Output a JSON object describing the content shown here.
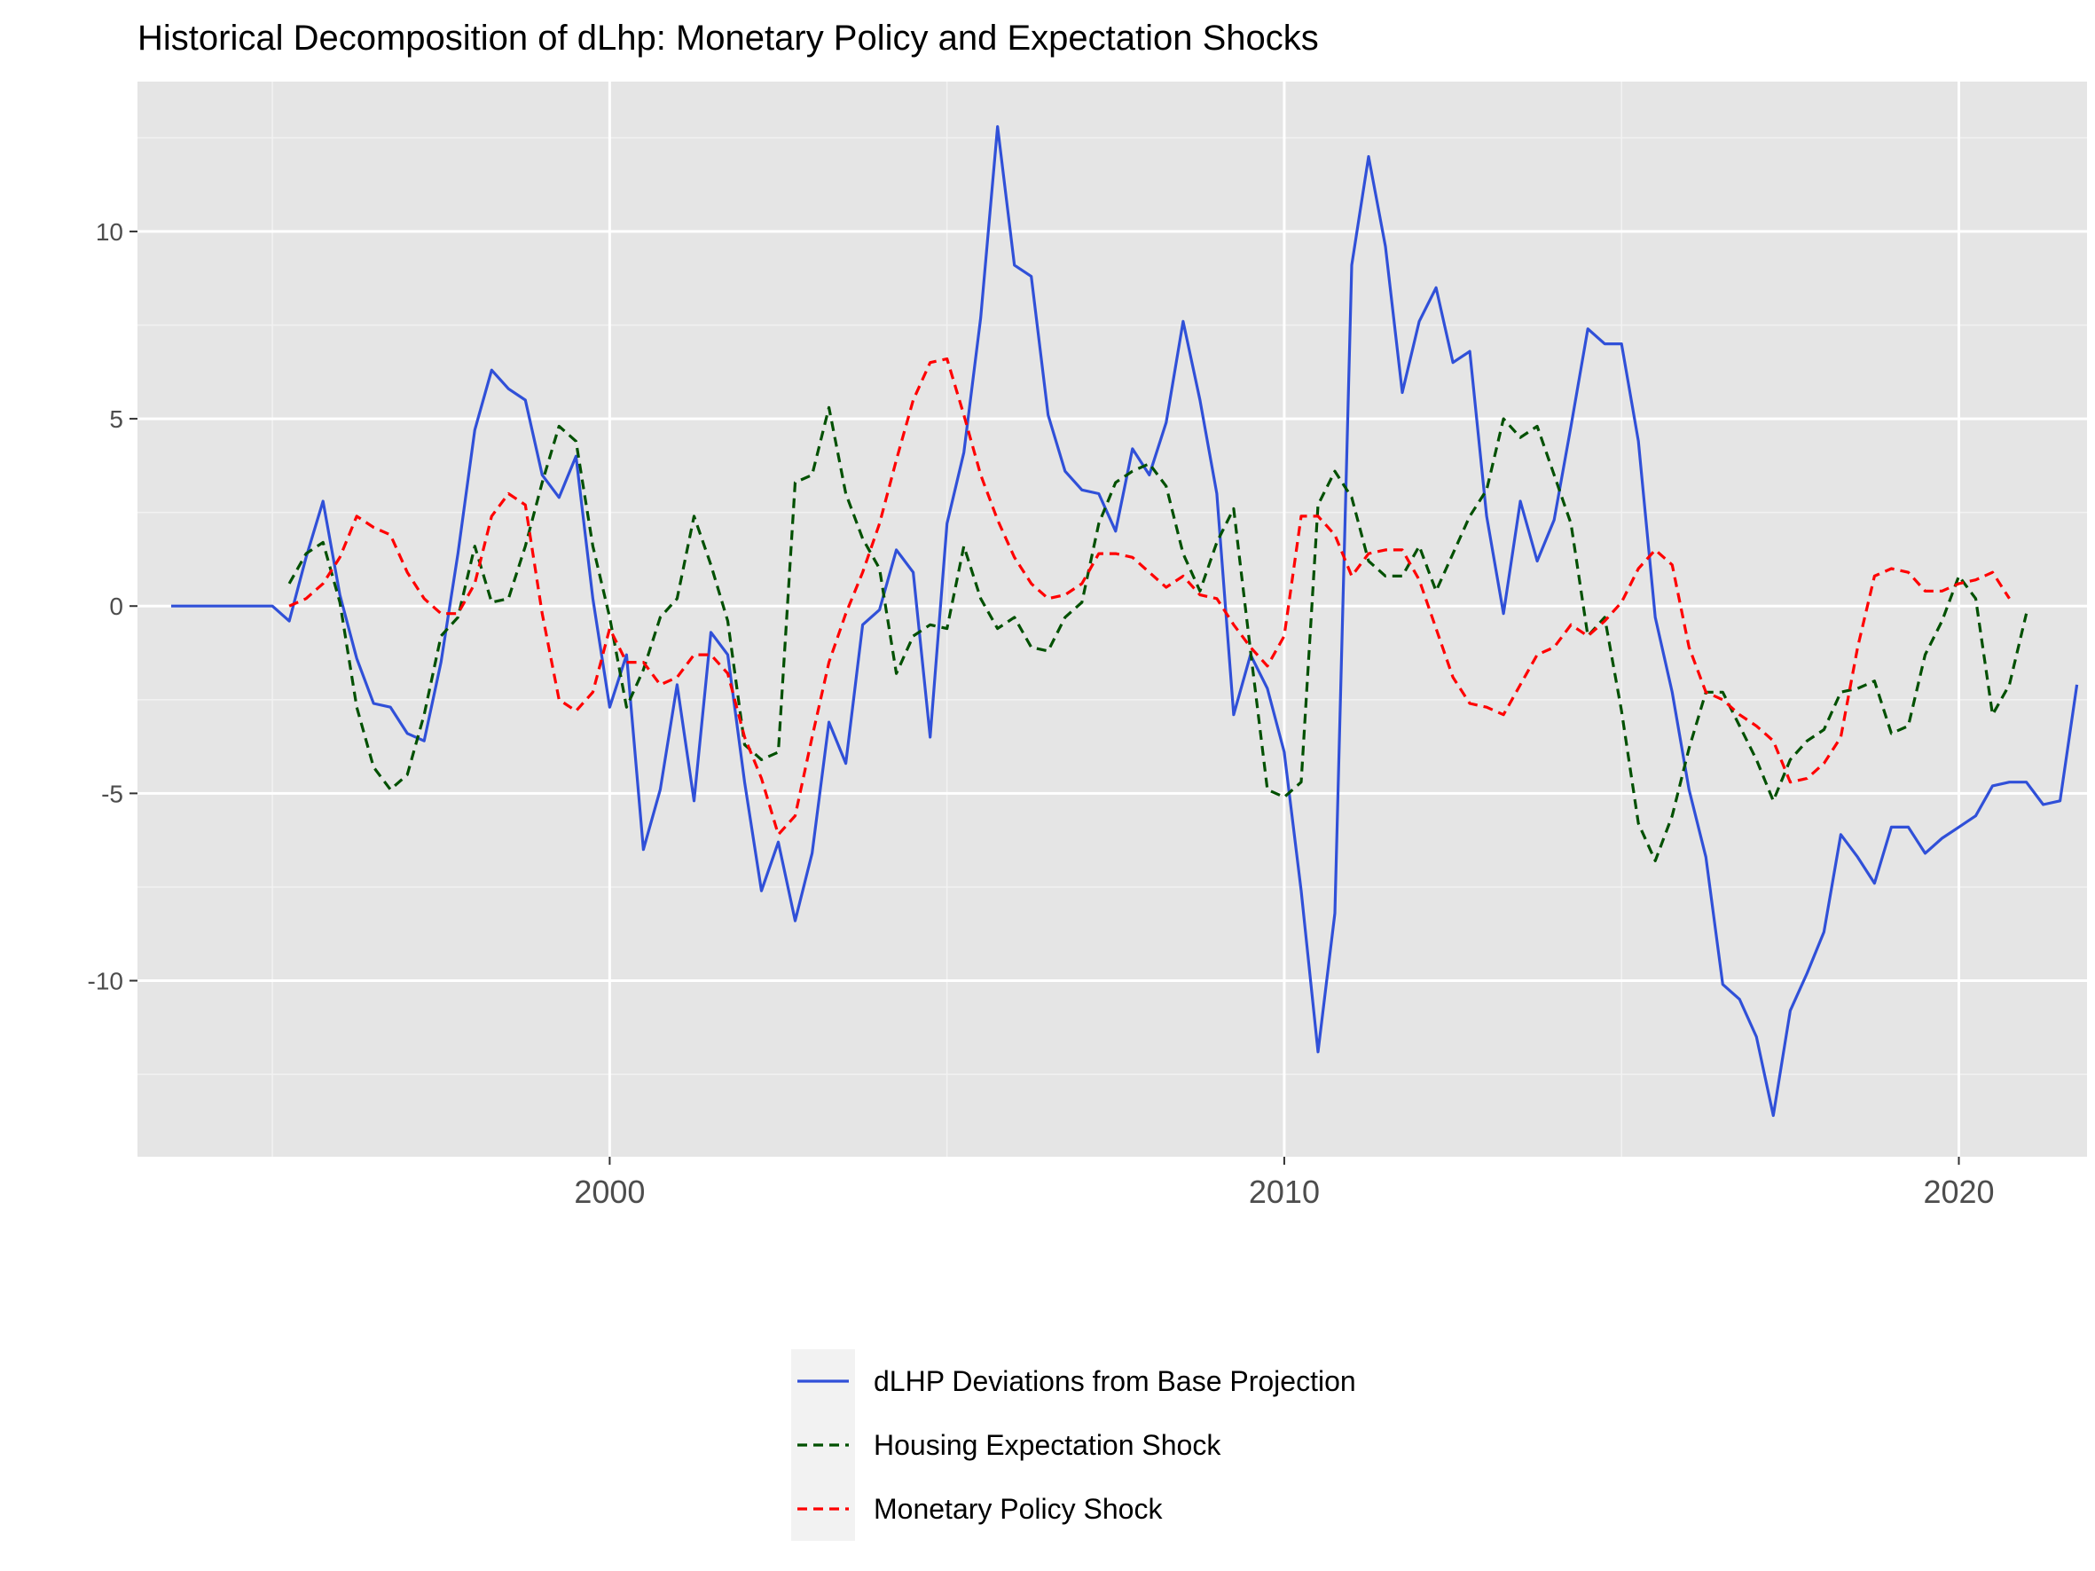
{
  "chart_data": {
    "type": "line",
    "title": "Historical Decomposition of dLhp: Monetary Policy and Expectation Shocks",
    "xlabel": "",
    "ylabel": "",
    "xlim": [
      1993.0,
      2021.9
    ],
    "ylim": [
      -14.7,
      14.0
    ],
    "grid": true,
    "legend_position": "bottom",
    "x_ticks": [
      2000,
      2010,
      2020
    ],
    "x_minor_ticks": [
      1995,
      2005,
      2015
    ],
    "x_tick_labels": [
      "2000",
      "2010",
      "2020"
    ],
    "y_ticks": [
      -10,
      -5,
      0,
      5,
      10
    ],
    "y_minor_ticks": [
      -12.5,
      -7.5,
      -2.5,
      2.5,
      7.5,
      12.5
    ],
    "y_tick_labels": [
      "-10",
      "-5",
      "0",
      "5",
      "10"
    ],
    "x_start": 1993.5,
    "x_step": 0.25,
    "series": [
      {
        "name": "dLHP Deviations from Base Projection",
        "color": "#3050d8",
        "dash": "solid",
        "start_index": 0,
        "values": [
          0,
          0,
          0,
          0,
          0,
          0,
          0,
          -0.4,
          1.3,
          2.8,
          0.3,
          -1.4,
          -2.6,
          -2.7,
          -3.4,
          -3.6,
          -1.5,
          1.4,
          4.7,
          6.3,
          5.8,
          5.5,
          3.5,
          2.9,
          4.0,
          0.2,
          -2.7,
          -1.3,
          -6.5,
          -4.9,
          -2.1,
          -5.2,
          -0.7,
          -1.3,
          -4.7,
          -7.6,
          -6.3,
          -8.4,
          -6.6,
          -3.1,
          -4.2,
          -0.5,
          -0.1,
          1.5,
          0.9,
          -3.5,
          2.2,
          4.1,
          7.7,
          12.8,
          9.1,
          8.8,
          5.1,
          3.6,
          3.1,
          3.0,
          2.0,
          4.2,
          3.5,
          4.9,
          7.6,
          5.5,
          3.0,
          -2.9,
          -1.3,
          -2.2,
          -3.9,
          -7.6,
          -11.9,
          -8.2,
          9.1,
          12.0,
          9.6,
          5.7,
          7.6,
          8.5,
          6.5,
          6.8,
          2.4,
          -0.2,
          2.8,
          1.2,
          2.3,
          4.8,
          7.4,
          7.0,
          7.0,
          4.4,
          -0.3,
          -2.3,
          -4.9,
          -6.7,
          -10.1,
          -10.5,
          -11.5,
          -13.6,
          -10.8,
          -9.8,
          -8.7,
          -6.1,
          -6.7,
          -7.4,
          -5.9,
          -5.9,
          -6.6,
          -6.2,
          -5.9,
          -5.6,
          -4.8,
          -4.7,
          -4.7,
          -5.3,
          -5.2,
          -2.1
        ]
      },
      {
        "name": "Housing Expectation Shock",
        "color": "#005000",
        "dash": "dashed",
        "start_index": 7,
        "values": [
          0.6,
          1.4,
          1.7,
          0.1,
          -2.7,
          -4.3,
          -4.9,
          -4.5,
          -2.9,
          -0.8,
          -0.3,
          1.6,
          0.1,
          0.2,
          1.6,
          3.3,
          4.8,
          4.4,
          1.6,
          -0.3,
          -2.7,
          -1.7,
          -0.3,
          0.2,
          2.4,
          1.1,
          -0.4,
          -3.7,
          -4.1,
          -3.9,
          3.3,
          3.5,
          5.3,
          3.0,
          1.8,
          1.0,
          -1.8,
          -0.8,
          -0.5,
          -0.6,
          1.6,
          0.2,
          -0.6,
          -0.3,
          -1.1,
          -1.2,
          -0.3,
          0.1,
          2.2,
          3.3,
          3.6,
          3.8,
          3.2,
          1.4,
          0.4,
          1.7,
          2.6,
          -1.2,
          -4.9,
          -5.1,
          -4.7,
          2.7,
          3.6,
          2.9,
          1.2,
          0.8,
          0.8,
          1.6,
          0.4,
          1.4,
          2.4,
          3.1,
          5.0,
          4.5,
          4.8,
          3.5,
          2.2,
          -0.8,
          -0.3,
          -2.8,
          -5.8,
          -6.8,
          -5.6,
          -3.8,
          -2.3,
          -2.3,
          -3.2,
          -4.1,
          -5.2,
          -4.1,
          -3.6,
          -3.3,
          -2.3,
          -2.2,
          -2.0,
          -3.4,
          -3.2,
          -1.3,
          -0.4,
          0.8,
          0.2,
          -2.9,
          -2.1,
          -0.2
        ]
      },
      {
        "name": "Monetary Policy Shock",
        "color": "#ff0000",
        "dash": "dashed",
        "start_index": 7,
        "values": [
          0,
          0.2,
          0.6,
          1.3,
          2.4,
          2.1,
          1.9,
          0.9,
          0.2,
          -0.2,
          -0.2,
          0.6,
          2.4,
          3.0,
          2.7,
          -0.2,
          -2.5,
          -2.8,
          -2.3,
          -0.6,
          -1.5,
          -1.5,
          -2.1,
          -1.9,
          -1.3,
          -1.3,
          -1.8,
          -3.5,
          -4.6,
          -6.1,
          -5.6,
          -3.5,
          -1.5,
          -0.2,
          0.9,
          2.2,
          3.9,
          5.5,
          6.5,
          6.6,
          5.1,
          3.5,
          2.3,
          1.3,
          0.6,
          0.2,
          0.3,
          0.6,
          1.4,
          1.4,
          1.3,
          0.9,
          0.5,
          0.8,
          0.3,
          0.2,
          -0.5,
          -1.1,
          -1.6,
          -0.8,
          2.4,
          2.4,
          1.9,
          0.8,
          1.4,
          1.5,
          1.5,
          0.7,
          -0.6,
          -1.9,
          -2.6,
          -2.7,
          -2.9,
          -2.1,
          -1.3,
          -1.1,
          -0.5,
          -0.8,
          -0.4,
          0.1,
          1.0,
          1.5,
          1.1,
          -1.1,
          -2.3,
          -2.5,
          -2.9,
          -3.2,
          -3.6,
          -4.7,
          -4.6,
          -4.2,
          -3.5,
          -1.1,
          0.8,
          1.0,
          0.9,
          0.4,
          0.4,
          0.6,
          0.7,
          0.9,
          0.2
        ]
      }
    ]
  }
}
